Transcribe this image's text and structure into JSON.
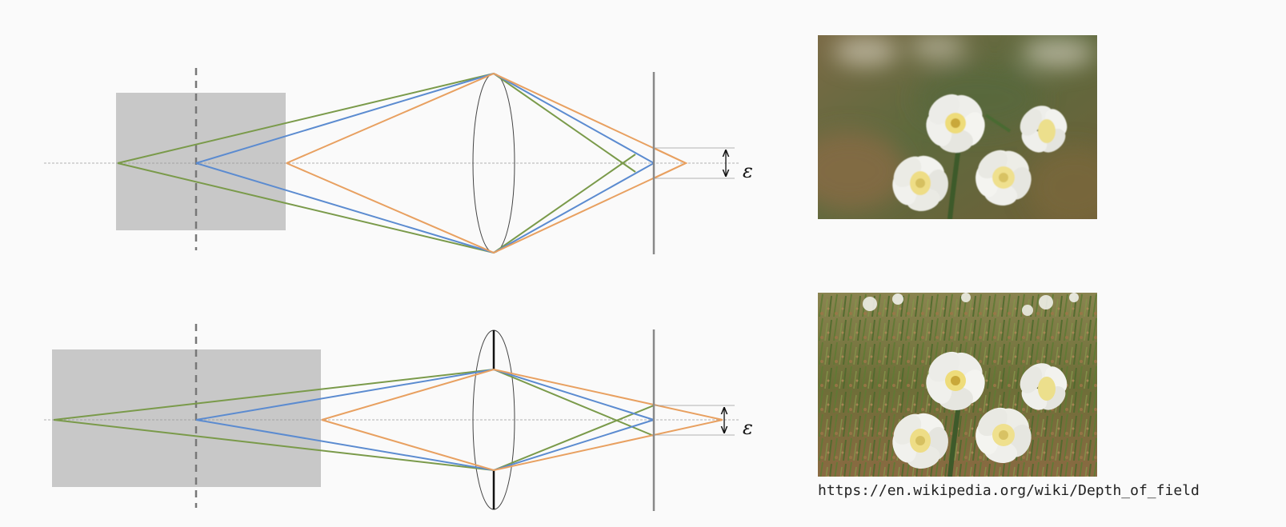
{
  "diagrams": [
    {
      "label": "large-aperture",
      "epsilon_label": "ε",
      "aperture": "open",
      "ray_colors": {
        "far": "#7a9a4a",
        "focus": "#5b8bd0",
        "near": "#e8a060"
      }
    },
    {
      "label": "small-aperture",
      "epsilon_label": "ε",
      "aperture": "stopped-down",
      "ray_colors": {
        "far": "#7a9a4a",
        "focus": "#5b8bd0",
        "near": "#e8a060"
      }
    }
  ],
  "photos": [
    {
      "subject": "narcissus flowers",
      "background": "blurred",
      "depth_of_field": "shallow"
    },
    {
      "subject": "narcissus flowers",
      "background": "sharp grass and flowers",
      "depth_of_field": "deep"
    }
  ],
  "source_url": "https://en.wikipedia.org/wiki/Depth_of_field",
  "colors": {
    "dof_region": "#c8c8c8",
    "sensor": "#888888",
    "axis": "#999999"
  }
}
